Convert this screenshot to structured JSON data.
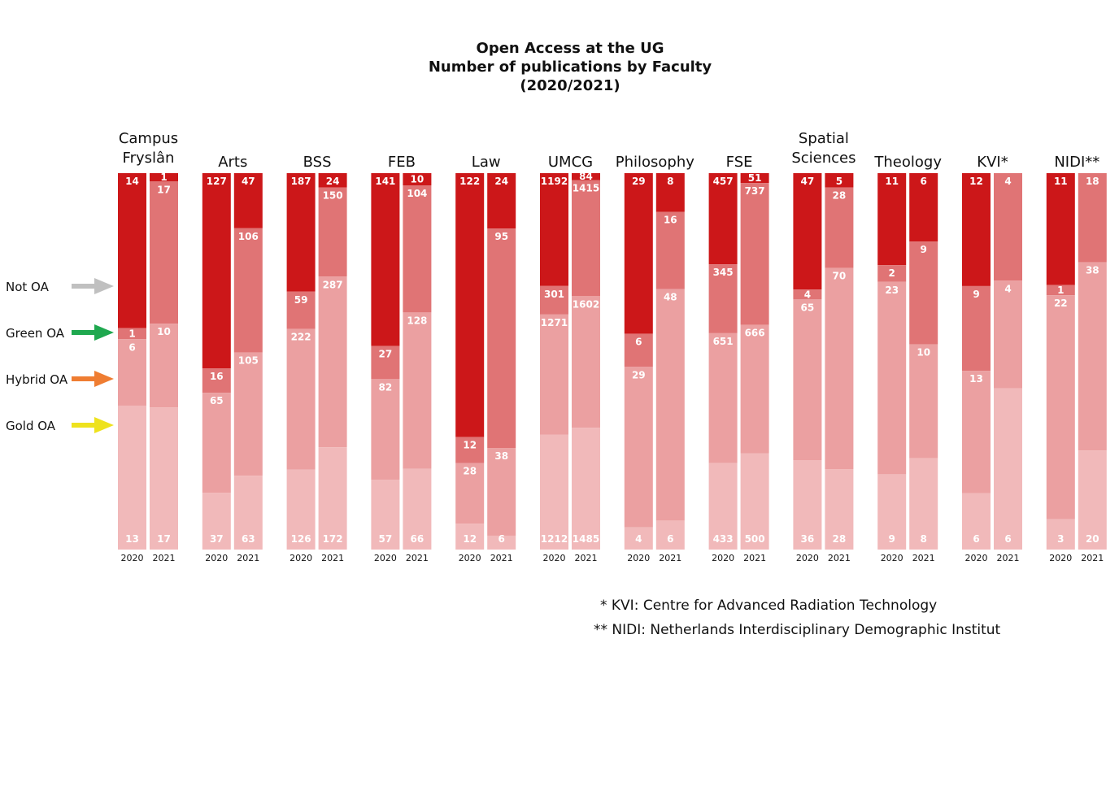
{
  "chart_data": {
    "type": "bar",
    "title": [
      "Open Access at the UG",
      "Number of publications by Faculty",
      "(2020/2021)"
    ],
    "stack_order_top_to_bottom": [
      "Not OA",
      "Green OA",
      "Hybrid OA",
      "Gold OA"
    ],
    "legend": [
      {
        "name": "Not OA",
        "arrow_color": "#c0c0c0"
      },
      {
        "name": "Green OA",
        "arrow_color": "#1fa84f"
      },
      {
        "name": "Hybrid OA",
        "arrow_color": "#ef7d32"
      },
      {
        "name": "Gold OA",
        "arrow_color": "#eee21e"
      }
    ],
    "segment_colors": {
      "2020": [
        "#cc1719",
        "#e07475",
        "#eba0a1",
        "#f1b9ba"
      ],
      "2021": [
        "#cc1719",
        "#e07475",
        "#eba0a1",
        "#f1b9ba"
      ]
    },
    "faculties": [
      {
        "name": [
          "Campus",
          "Fryslân"
        ],
        "years": [
          {
            "year": "2020",
            "values": [
              14,
              1,
              6,
              13
            ]
          },
          {
            "year": "2021",
            "values": [
              1,
              17,
              10,
              17
            ]
          }
        ]
      },
      {
        "name": [
          "Arts"
        ],
        "years": [
          {
            "year": "2020",
            "values": [
              127,
              16,
              65,
              37
            ]
          },
          {
            "year": "2021",
            "values": [
              47,
              106,
              105,
              63
            ]
          }
        ]
      },
      {
        "name": [
          "BSS"
        ],
        "years": [
          {
            "year": "2020",
            "values": [
              187,
              59,
              222,
              126
            ]
          },
          {
            "year": "2021",
            "values": [
              24,
              150,
              287,
              172
            ]
          }
        ]
      },
      {
        "name": [
          "FEB"
        ],
        "years": [
          {
            "year": "2020",
            "values": [
              141,
              27,
              82,
              57
            ]
          },
          {
            "year": "2021",
            "values": [
              10,
              104,
              128,
              66
            ]
          }
        ]
      },
      {
        "name": [
          "Law"
        ],
        "years": [
          {
            "year": "2020",
            "values": [
              122,
              12,
              28,
              12
            ]
          },
          {
            "year": "2021",
            "values": [
              24,
              95,
              38,
              6
            ]
          }
        ]
      },
      {
        "name": [
          "UMCG"
        ],
        "years": [
          {
            "year": "2020",
            "values": [
              1192,
              301,
              1271,
              1212
            ]
          },
          {
            "year": "2021",
            "values": [
              84,
              1415,
              1602,
              1485
            ]
          }
        ]
      },
      {
        "name": [
          "Philosophy"
        ],
        "years": [
          {
            "year": "2020",
            "values": [
              29,
              6,
              29,
              4
            ]
          },
          {
            "year": "2021",
            "values": [
              8,
              16,
              48,
              6
            ]
          }
        ]
      },
      {
        "name": [
          "FSE"
        ],
        "years": [
          {
            "year": "2020",
            "values": [
              457,
              345,
              651,
              433
            ]
          },
          {
            "year": "2021",
            "values": [
              51,
              737,
              666,
              500
            ]
          }
        ]
      },
      {
        "name": [
          "Spatial",
          "Sciences"
        ],
        "years": [
          {
            "year": "2020",
            "values": [
              47,
              4,
              65,
              36
            ]
          },
          {
            "year": "2021",
            "values": [
              5,
              28,
              70,
              28
            ]
          }
        ]
      },
      {
        "name": [
          "Theology"
        ],
        "years": [
          {
            "year": "2020",
            "values": [
              11,
              2,
              23,
              9
            ]
          },
          {
            "year": "2021",
            "values": [
              6,
              9,
              10,
              8
            ]
          }
        ]
      },
      {
        "name": [
          "KVI*"
        ],
        "years": [
          {
            "year": "2020",
            "values": [
              12,
              9,
              13,
              6
            ]
          },
          {
            "year": "2021",
            "values": [
              0,
              4,
              4,
              6
            ]
          }
        ]
      },
      {
        "name": [
          "NIDI**"
        ],
        "years": [
          {
            "year": "2020",
            "values": [
              11,
              1,
              22,
              3
            ]
          },
          {
            "year": "2021",
            "values": [
              0,
              18,
              38,
              20
            ]
          }
        ]
      }
    ],
    "footnotes": [
      "* KVI: Centre for Advanced Radiation Technology",
      "** NIDI: Netherlands Interdisciplinary Demographic Institut"
    ]
  }
}
